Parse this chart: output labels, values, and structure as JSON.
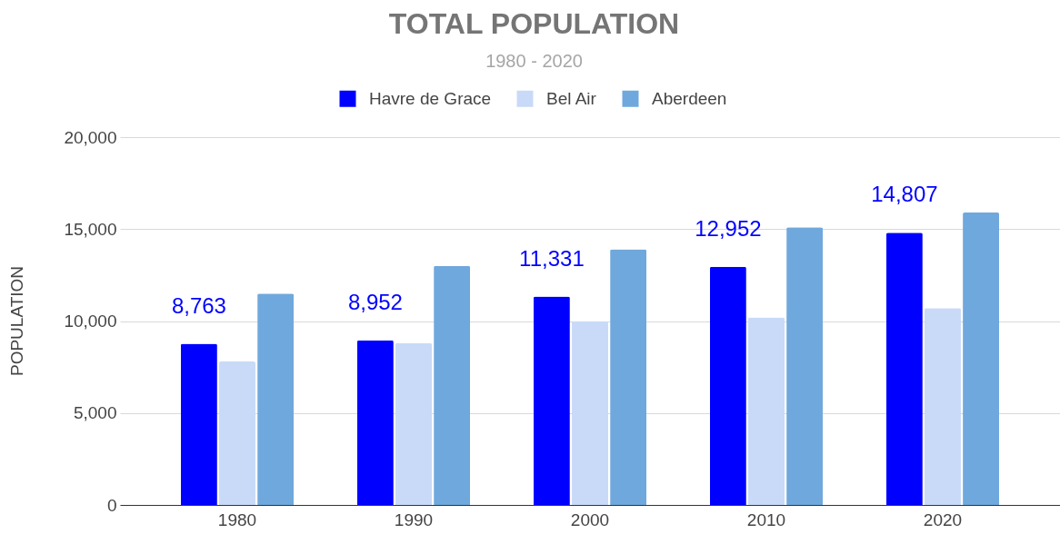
{
  "chart_data": {
    "type": "bar",
    "title": "TOTAL POPULATION",
    "subtitle": "1980 - 2020",
    "ylabel": "POPULATION",
    "categories": [
      "1980",
      "1990",
      "2000",
      "2010",
      "2020"
    ],
    "series": [
      {
        "name": "Havre de Grace",
        "color": "#0000ff",
        "values": [
          8763,
          8952,
          11331,
          12952,
          14807
        ],
        "value_labels": [
          "8,763",
          "8,952",
          "11,331",
          "12,952",
          "14,807"
        ]
      },
      {
        "name": "Bel Air",
        "color": "#c9daf8",
        "values": [
          7800,
          8800,
          10000,
          10200,
          10700
        ]
      },
      {
        "name": "Aberdeen",
        "color": "#6fa8dc",
        "values": [
          11500,
          13000,
          13900,
          15100,
          15900
        ]
      }
    ],
    "ylim": [
      0,
      20000
    ],
    "yticks": [
      0,
      {
        "value": 5000,
        "label": "5,000"
      },
      {
        "value": 10000,
        "label": "10,000"
      },
      {
        "value": 15000,
        "label": "15,000"
      },
      {
        "value": 20000,
        "label": "20,000"
      }
    ],
    "grid": "y",
    "legend": "top"
  }
}
